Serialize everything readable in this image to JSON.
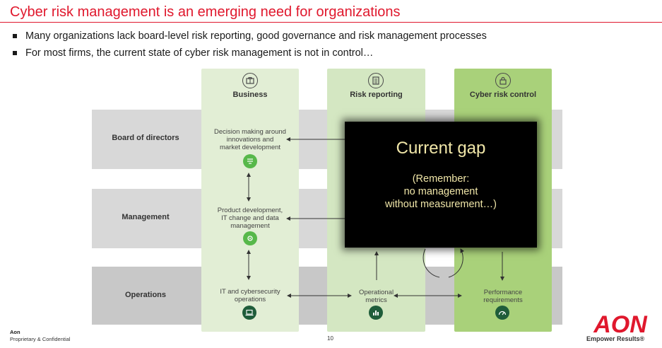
{
  "header": {
    "title": "Cyber risk management is an emerging need for organizations",
    "bullets": [
      "Many organizations lack board-level risk reporting, good governance and risk management processes",
      "For most firms, the current state of cyber risk management is not in control…"
    ]
  },
  "diagram": {
    "columns": [
      {
        "title": "Business",
        "icon": "building-icon"
      },
      {
        "title": "Risk reporting",
        "icon": "report-icon"
      },
      {
        "title": "Cyber risk control",
        "icon": "lock-icon"
      }
    ],
    "rows": [
      {
        "label": "Board of directors"
      },
      {
        "label": "Management"
      },
      {
        "label": "Operations"
      }
    ],
    "cells": {
      "board_business": "Decision making around\ninnovations and\nmarket development",
      "management_business": "Product development,\nIT change and data\nmanagement",
      "operations_business": "IT and cybersecurity\noperations",
      "operations_risk": "Operational\nmetrics",
      "operations_cyber": "Performance\nrequirements"
    },
    "cell_icons": [
      "list-icon",
      "gear-icon",
      "laptop-icon",
      "chart-icon",
      "gauge-icon"
    ],
    "colors": {
      "business_column": "#e2eed5",
      "risk_column": "#d4e7c2",
      "cyber_column": "#a9d17a",
      "row_band": "#d8d8d8",
      "icon_light": "#57b84a",
      "icon_dark": "#1f5d3a"
    }
  },
  "overlay": {
    "title": "Current gap",
    "note": "(Remember:\nno management\nwithout measurement…)",
    "text_color": "#f0e6a8"
  },
  "footer": {
    "company": "Aon",
    "confidentiality": "Proprietary & Confidential",
    "page_number": "10",
    "logo_text": "AON",
    "tagline": "Empower Results®"
  },
  "brand_color": "#e0182d"
}
